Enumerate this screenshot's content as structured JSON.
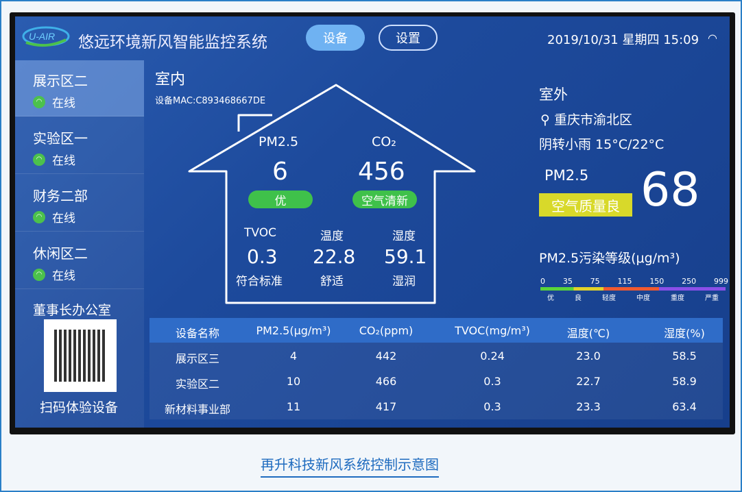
{
  "header": {
    "title": "悠远环境新风智能监控系统",
    "logo": "U-AIR",
    "tabs": [
      {
        "label": "设备"
      },
      {
        "label": "设置"
      }
    ],
    "datetime": "2019/10/31 星期四 15:09",
    "wifi_icon": "wifi-icon"
  },
  "sidebar": {
    "items": [
      {
        "name": "展示区二",
        "status": "在线"
      },
      {
        "name": "实验区一",
        "status": "在线"
      },
      {
        "name": "财务二部",
        "status": "在线"
      },
      {
        "name": "休闲区二",
        "status": "在线"
      }
    ],
    "office": "董事长办公室",
    "qr_label": "扫码体验设备"
  },
  "indoor": {
    "title": "室内",
    "mac": "设备MAC:C893468667DE",
    "pm25": {
      "label": "PM2.5",
      "value": "6",
      "badge": "优"
    },
    "co2": {
      "label": "CO₂",
      "value": "456",
      "badge": "空气清新"
    },
    "tvoc": {
      "label": "TVOC",
      "value": "0.3",
      "desc": "符合标准"
    },
    "temp": {
      "label": "温度",
      "value": "22.8",
      "desc": "舒适"
    },
    "humidity": {
      "label": "湿度",
      "value": "59.1",
      "desc": "湿润"
    }
  },
  "outdoor": {
    "title": "室外",
    "location": "重庆市渝北区",
    "weather": "阴转小雨 15°C/22°C",
    "pm25_label": "PM2.5",
    "quality": "空气质量良",
    "pm25_value": "68",
    "scale_title": "PM2.5污染等级(μg/m³)",
    "ticks": [
      "0",
      "35",
      "75",
      "115",
      "150",
      "250",
      "999"
    ],
    "levels": [
      "优",
      "良",
      "轻度",
      "中度",
      "重度",
      "严重"
    ]
  },
  "table": {
    "headers": [
      "设备名称",
      "PM2.5(μg/m³)",
      "CO₂(ppm)",
      "TVOC(mg/m³)",
      "温度(℃)",
      "湿度(%)"
    ],
    "rows": [
      [
        "展示区三",
        "4",
        "442",
        "0.24",
        "23.0",
        "58.5"
      ],
      [
        "实验区二",
        "10",
        "466",
        "0.3",
        "22.7",
        "58.9"
      ],
      [
        "新材料事业部",
        "11",
        "417",
        "0.3",
        "23.3",
        "63.4"
      ]
    ]
  },
  "caption": "再升科技新风系统控制示意图",
  "colors": {
    "good": "#3fc14a",
    "moderate": "#e2d22a",
    "accent": "#6fb2f2"
  }
}
